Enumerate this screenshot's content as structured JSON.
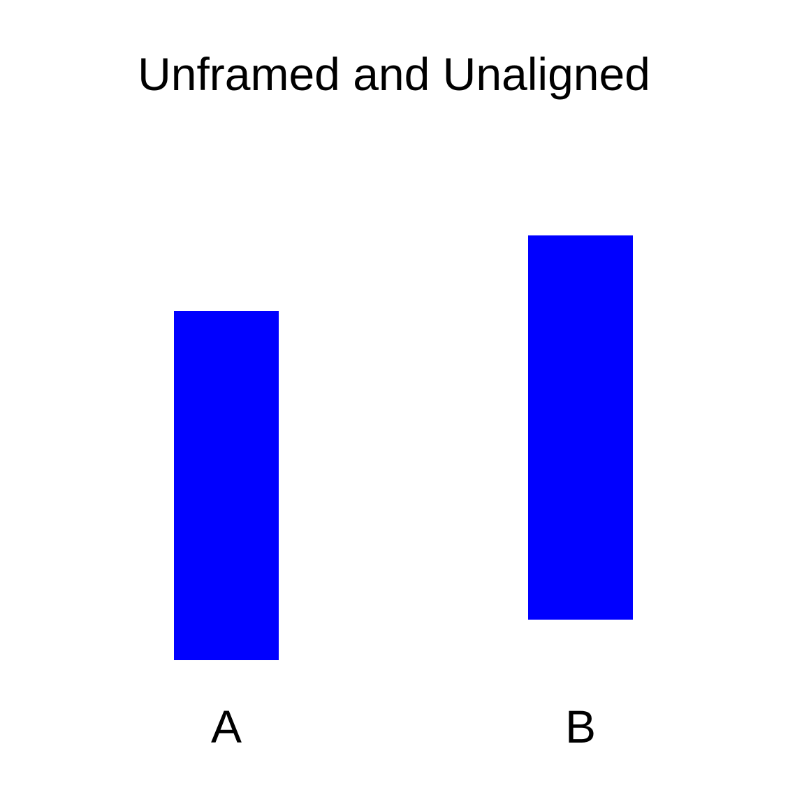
{
  "chart_data": {
    "type": "bar",
    "title": "Unframed and Unaligned",
    "categories": [
      "A",
      "B"
    ],
    "values": [
      50,
      55
    ],
    "bar_color": "#0000ff",
    "axes_visible": false,
    "grid": false,
    "baselines_aligned": false
  }
}
